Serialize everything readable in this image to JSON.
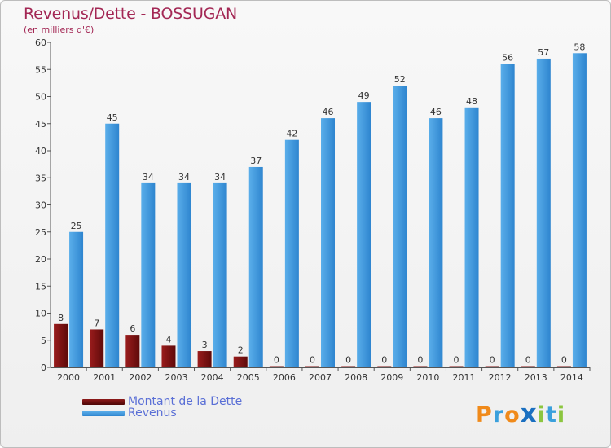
{
  "title": "Revenus/Dette - BOSSUGAN",
  "subtitle": "(en milliers d'€)",
  "logo": "Proxiti",
  "colors": {
    "dette": "#7a1212",
    "revenus": "#3a93db",
    "title": "#a32754",
    "axis_text": "#333333",
    "legend_text": "#5a6fd6"
  },
  "chart_data": {
    "type": "bar",
    "categories": [
      "2000",
      "2001",
      "2002",
      "2003",
      "2004",
      "2005",
      "2006",
      "2007",
      "2008",
      "2009",
      "2010",
      "2011",
      "2012",
      "2013",
      "2014"
    ],
    "series": [
      {
        "name": "Montant de la Dette",
        "values": [
          8,
          7,
          6,
          4,
          3,
          2,
          0,
          0,
          0,
          0,
          0,
          0,
          0,
          0,
          0
        ]
      },
      {
        "name": "Revenus",
        "values": [
          25,
          45,
          34,
          34,
          34,
          37,
          42,
          46,
          49,
          52,
          46,
          48,
          56,
          57,
          58
        ]
      }
    ],
    "ylim": [
      0,
      60
    ],
    "yticks": [
      0,
      5,
      10,
      15,
      20,
      25,
      30,
      35,
      40,
      45,
      50,
      55,
      60
    ],
    "grid": false,
    "legend_position": "bottom-left",
    "data_labels": true
  }
}
